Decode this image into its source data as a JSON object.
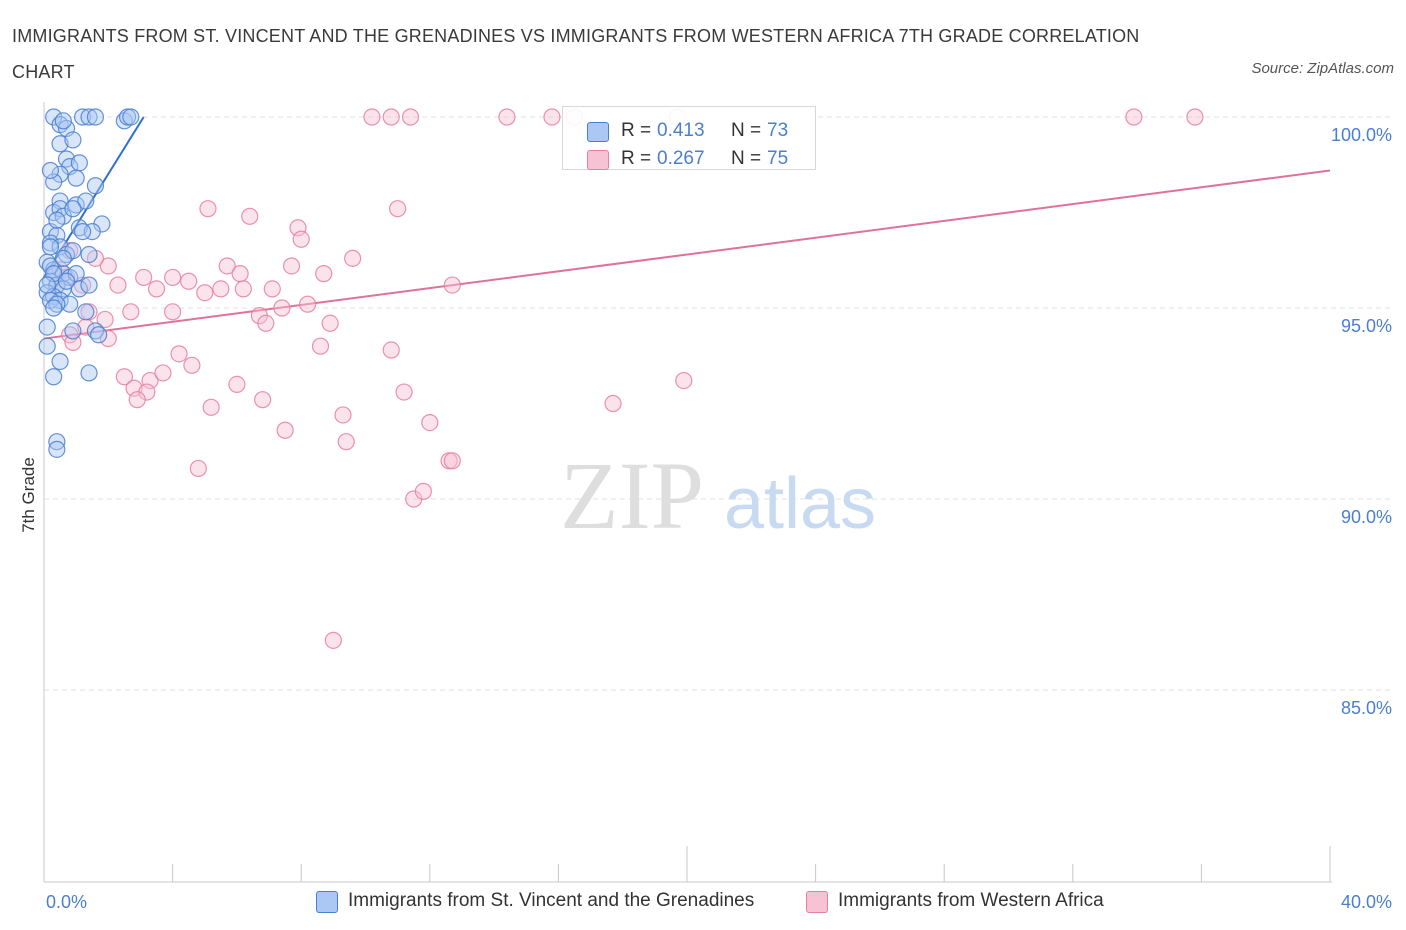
{
  "title": "IMMIGRANTS FROM ST. VINCENT AND THE GRENADINES VS IMMIGRANTS FROM WESTERN AFRICA 7TH GRADE CORRELATION CHART",
  "source": "Source: ZipAtlas.com",
  "watermark": {
    "zip": "ZIP",
    "atlas": "atlas"
  },
  "colors": {
    "blue": "#4a7fd0",
    "blue_fill": "#aac8f3",
    "blue_line": "#2f6fcf",
    "pink": "#e87ea1",
    "pink_fill": "#f7c2d3",
    "pink_line": "#e0719a",
    "grid": "#e0e0e0",
    "axis_text": "#4a7fd0"
  },
  "legend": {
    "series1": {
      "r_label": "R =",
      "r_value": "0.413",
      "n_label": "N =",
      "n_value": "73"
    },
    "series2": {
      "r_label": "R =",
      "r_value": "0.267",
      "n_label": "N =",
      "n_value": "75"
    }
  },
  "chart_data": {
    "type": "scatter",
    "title": "IMMIGRANTS FROM ST. VINCENT AND THE GRENADINES VS IMMIGRANTS FROM WESTERN AFRICA 7TH GRADE CORRELATION CHART",
    "xlabel": "",
    "ylabel": "7th Grade",
    "xlim": [
      0,
      40
    ],
    "ylim": [
      80,
      100.5
    ],
    "x_tick_labels": [
      "0.0%",
      "40.0%"
    ],
    "y_ticks": [
      85,
      90,
      95,
      100
    ],
    "y_tick_labels": [
      "85.0%",
      "90.0%",
      "95.0%",
      "100.0%"
    ],
    "grid": true,
    "legend_position": "bottom-center",
    "series": [
      {
        "name": "Immigrants from St. Vincent and the Grenadines",
        "color": "#4a7fd0",
        "r": 0.413,
        "n": 73,
        "trend": {
          "x": [
            0.0,
            3.1
          ],
          "y": [
            95.8,
            100.0
          ]
        },
        "points": [
          [
            0.3,
            100.0
          ],
          [
            0.5,
            99.8
          ],
          [
            0.7,
            99.7
          ],
          [
            1.2,
            100.0
          ],
          [
            1.4,
            100.0
          ],
          [
            1.6,
            100.0
          ],
          [
            2.5,
            99.9
          ],
          [
            2.6,
            100.0
          ],
          [
            2.7,
            100.0
          ],
          [
            0.5,
            99.3
          ],
          [
            0.9,
            99.4
          ],
          [
            0.7,
            98.9
          ],
          [
            0.8,
            98.7
          ],
          [
            1.1,
            98.8
          ],
          [
            0.5,
            98.5
          ],
          [
            1.0,
            98.4
          ],
          [
            0.3,
            98.3
          ],
          [
            1.6,
            98.2
          ],
          [
            0.5,
            97.8
          ],
          [
            1.0,
            97.7
          ],
          [
            1.3,
            97.8
          ],
          [
            0.3,
            97.5
          ],
          [
            0.5,
            97.6
          ],
          [
            0.6,
            97.4
          ],
          [
            0.9,
            97.6
          ],
          [
            1.1,
            97.1
          ],
          [
            1.8,
            97.2
          ],
          [
            1.5,
            97.0
          ],
          [
            0.2,
            97.0
          ],
          [
            0.4,
            96.9
          ],
          [
            0.2,
            96.7
          ],
          [
            0.5,
            96.6
          ],
          [
            0.7,
            96.4
          ],
          [
            0.9,
            96.5
          ],
          [
            1.4,
            96.4
          ],
          [
            0.1,
            96.2
          ],
          [
            0.3,
            96.0
          ],
          [
            0.6,
            95.9
          ],
          [
            0.8,
            95.8
          ],
          [
            1.0,
            95.9
          ],
          [
            0.2,
            95.7
          ],
          [
            0.4,
            95.6
          ],
          [
            0.6,
            95.5
          ],
          [
            1.1,
            95.5
          ],
          [
            1.4,
            95.6
          ],
          [
            0.1,
            95.4
          ],
          [
            0.3,
            95.3
          ],
          [
            0.5,
            95.2
          ],
          [
            0.8,
            95.1
          ],
          [
            0.2,
            95.2
          ],
          [
            0.4,
            95.1
          ],
          [
            1.3,
            94.9
          ],
          [
            0.1,
            94.5
          ],
          [
            0.9,
            94.4
          ],
          [
            1.6,
            94.4
          ],
          [
            1.7,
            94.3
          ],
          [
            0.1,
            94.0
          ],
          [
            0.5,
            93.6
          ],
          [
            1.4,
            93.3
          ],
          [
            0.3,
            93.2
          ],
          [
            0.4,
            91.5
          ],
          [
            0.4,
            91.3
          ],
          [
            0.2,
            96.6
          ],
          [
            0.2,
            96.1
          ],
          [
            0.6,
            96.3
          ],
          [
            0.3,
            95.9
          ],
          [
            0.1,
            95.6
          ],
          [
            0.7,
            95.7
          ],
          [
            0.4,
            97.3
          ],
          [
            0.2,
            98.6
          ],
          [
            1.2,
            97.0
          ],
          [
            0.3,
            95.0
          ],
          [
            0.6,
            99.9
          ]
        ]
      },
      {
        "name": "Immigrants from Western Africa",
        "color": "#e87ea1",
        "r": 0.267,
        "n": 75,
        "trend": {
          "x": [
            0.0,
            40.0
          ],
          "y": [
            94.2,
            98.6
          ]
        },
        "points": [
          [
            10.2,
            100.0
          ],
          [
            10.8,
            100.0
          ],
          [
            11.4,
            100.0
          ],
          [
            14.4,
            100.0
          ],
          [
            15.8,
            100.0
          ],
          [
            16.5,
            100.0
          ],
          [
            19.7,
            100.0
          ],
          [
            33.9,
            100.0
          ],
          [
            35.8,
            100.0
          ],
          [
            5.1,
            97.6
          ],
          [
            6.4,
            97.4
          ],
          [
            7.9,
            97.1
          ],
          [
            8.0,
            96.8
          ],
          [
            11.0,
            97.6
          ],
          [
            2.0,
            96.1
          ],
          [
            0.8,
            96.5
          ],
          [
            1.6,
            96.3
          ],
          [
            0.5,
            96.0
          ],
          [
            5.7,
            96.1
          ],
          [
            6.1,
            95.9
          ],
          [
            7.7,
            96.1
          ],
          [
            8.7,
            95.9
          ],
          [
            9.6,
            96.3
          ],
          [
            0.7,
            95.8
          ],
          [
            2.3,
            95.6
          ],
          [
            3.5,
            95.5
          ],
          [
            4.0,
            95.8
          ],
          [
            4.5,
            95.7
          ],
          [
            5.0,
            95.4
          ],
          [
            5.5,
            95.5
          ],
          [
            6.2,
            95.5
          ],
          [
            7.1,
            95.5
          ],
          [
            8.2,
            95.1
          ],
          [
            12.7,
            95.6
          ],
          [
            2.7,
            94.9
          ],
          [
            4.0,
            94.9
          ],
          [
            6.7,
            94.8
          ],
          [
            6.9,
            94.6
          ],
          [
            7.4,
            95.0
          ],
          [
            8.9,
            94.6
          ],
          [
            1.9,
            94.7
          ],
          [
            1.3,
            94.5
          ],
          [
            0.8,
            94.3
          ],
          [
            0.9,
            94.1
          ],
          [
            2.0,
            94.2
          ],
          [
            4.2,
            93.8
          ],
          [
            4.6,
            93.5
          ],
          [
            8.6,
            94.0
          ],
          [
            10.8,
            93.9
          ],
          [
            2.5,
            93.2
          ],
          [
            3.3,
            93.1
          ],
          [
            3.7,
            93.3
          ],
          [
            2.8,
            92.9
          ],
          [
            3.2,
            92.8
          ],
          [
            2.9,
            92.6
          ],
          [
            6.0,
            93.0
          ],
          [
            6.8,
            92.6
          ],
          [
            11.2,
            92.8
          ],
          [
            19.9,
            93.1
          ],
          [
            5.2,
            92.4
          ],
          [
            9.3,
            92.2
          ],
          [
            12.0,
            92.0
          ],
          [
            17.7,
            92.5
          ],
          [
            7.5,
            91.8
          ],
          [
            9.4,
            91.5
          ],
          [
            12.6,
            91.0
          ],
          [
            12.7,
            91.0
          ],
          [
            4.8,
            90.8
          ],
          [
            11.5,
            90.0
          ],
          [
            11.8,
            90.2
          ],
          [
            9.0,
            86.3
          ],
          [
            0.4,
            95.6
          ],
          [
            1.2,
            95.6
          ],
          [
            3.1,
            95.8
          ],
          [
            1.4,
            94.9
          ]
        ]
      }
    ]
  },
  "bottom_legend": {
    "series1_label": "Immigrants from St. Vincent and the Grenadines",
    "series2_label": "Immigrants from Western Africa"
  }
}
